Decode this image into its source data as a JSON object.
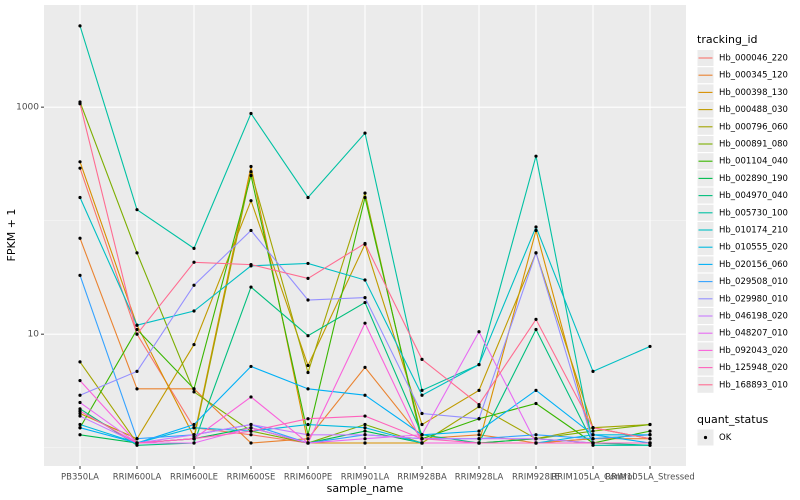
{
  "chart_data": {
    "type": "line",
    "scale": "log",
    "grid": true,
    "xlabel": "sample_name",
    "ylabel": "FPKM + 1",
    "categories": [
      "PB350LA",
      "RRIM600LA",
      "RRIM600LE",
      "RRIM600SE",
      "RRIM600PE",
      "RRIM901LA",
      "RRIM928BA",
      "RRIM928LA",
      "RRIM928LE",
      "RRIM105LA_Control",
      "RRIM105LA_Stressed"
    ],
    "ylim": [
      0.69,
      7940
    ],
    "yticks": [
      10,
      1000
    ],
    "yminorticks": [
      1,
      100
    ],
    "legend_title": "tracking_id",
    "legend_position": "right",
    "point_legend_title": "quant_status",
    "point_legend_label": "OK",
    "point_color": "#000000",
    "series": [
      {
        "name": "Hb_000046_220",
        "color": "#F8766D",
        "values": [
          290,
          10,
          1.5,
          1.3,
          1.1,
          1.1,
          1.1,
          1.1,
          1.1,
          1.2,
          1.3
        ]
      },
      {
        "name": "Hb_000345_120",
        "color": "#EA8331",
        "values": [
          70,
          3.3,
          3.3,
          1.1,
          1.2,
          5.1,
          1.2,
          1.3,
          1.1,
          1.2,
          1.2
        ]
      },
      {
        "name": "Hb_000398_130",
        "color": "#D89000",
        "values": [
          330,
          12,
          1.25,
          300,
          1.1,
          1.1,
          1.1,
          1.1,
          82,
          1.1,
          1.1
        ]
      },
      {
        "name": "Hb_000488_030",
        "color": "#C09B00",
        "values": [
          2.0,
          1.2,
          8.1,
          150,
          5.3,
          62,
          1.6,
          3.2,
          52,
          1.5,
          1.2
        ]
      },
      {
        "name": "Hb_000796_060",
        "color": "#A3A500",
        "values": [
          5.7,
          1.1,
          1.2,
          270,
          4.6,
          175,
          1.1,
          2.3,
          1.2,
          1.5,
          1.6
        ]
      },
      {
        "name": "Hb_000891_080",
        "color": "#7CAE00",
        "values": [
          1110,
          52,
          3.1,
          1.4,
          1.1,
          1.6,
          1.1,
          1.1,
          1.2,
          1.4,
          1.6
        ]
      },
      {
        "name": "Hb_001104_040",
        "color": "#39B600",
        "values": [
          1.5,
          11,
          3.3,
          250,
          1.3,
          160,
          1.2,
          1.8,
          2.45,
          1.1,
          1.4
        ]
      },
      {
        "name": "Hb_002890_190",
        "color": "#00BB4E",
        "values": [
          1.3,
          1.1,
          1.2,
          1.5,
          1.1,
          1.4,
          1.1,
          1.1,
          1.2,
          1.1,
          1.1
        ]
      },
      {
        "name": "Hb_004970_040",
        "color": "#00BF7D",
        "values": [
          2.2,
          1.05,
          1.1,
          26,
          9.7,
          19,
          1.3,
          1.1,
          11,
          1.1,
          1.05
        ]
      },
      {
        "name": "Hb_005730_100",
        "color": "#00C1A3",
        "values": [
          5200,
          125,
          57,
          880,
          160,
          590,
          3.2,
          5.4,
          370,
          1.05,
          1.05
        ]
      },
      {
        "name": "Hb_010174_210",
        "color": "#00BFC4",
        "values": [
          160,
          12,
          16,
          40,
          42,
          30,
          2.9,
          5.4,
          88,
          4.7,
          7.8
        ]
      },
      {
        "name": "Hb_010555_020",
        "color": "#00BAE0",
        "values": [
          1.6,
          1.1,
          1.5,
          1.4,
          1.6,
          1.5,
          1.1,
          1.1,
          1.1,
          1.3,
          1.3
        ]
      },
      {
        "name": "Hb_020156_060",
        "color": "#00B0F6",
        "values": [
          1.5,
          1.1,
          1.6,
          5.2,
          3.3,
          2.9,
          1.3,
          1.4,
          3.2,
          1.3,
          1.1
        ]
      },
      {
        "name": "Hb_029508_010",
        "color": "#35A2FF",
        "values": [
          33,
          1.2,
          1.3,
          1.6,
          1.1,
          1.3,
          1.2,
          1.2,
          1.3,
          1.2,
          1.3
        ]
      },
      {
        "name": "Hb_029980_010",
        "color": "#9590FF",
        "values": [
          2.9,
          4.7,
          27,
          82,
          20,
          21,
          2.0,
          1.8,
          52,
          1.1,
          1.1
        ]
      },
      {
        "name": "Hb_046198_020",
        "color": "#C77CFF",
        "values": [
          1.9,
          1.1,
          1.3,
          1.6,
          1.3,
          1.3,
          1.2,
          1.2,
          1.2,
          1.1,
          1.1
        ]
      },
      {
        "name": "Hb_048207_010",
        "color": "#E76BF3",
        "values": [
          2.5,
          1.1,
          1.1,
          1.5,
          1.1,
          1.2,
          1.3,
          10.5,
          1.1,
          1.1,
          1.1
        ]
      },
      {
        "name": "Hb_092043_020",
        "color": "#FA62DB",
        "values": [
          3.9,
          1.1,
          1.2,
          2.8,
          1.1,
          12.5,
          1.1,
          1.1,
          1.1,
          1.1,
          1.1
        ]
      },
      {
        "name": "Hb_125948_020",
        "color": "#FF62BC",
        "values": [
          2.1,
          1.1,
          1.2,
          1.4,
          1.8,
          1.9,
          1.2,
          1.1,
          1.1,
          1.1,
          1.1
        ]
      },
      {
        "name": "Hb_168893_010",
        "color": "#FF6C91",
        "values": [
          1070,
          10,
          43,
          41,
          31,
          63,
          6.0,
          2.4,
          13.5,
          1.5,
          1.2
        ]
      }
    ]
  }
}
